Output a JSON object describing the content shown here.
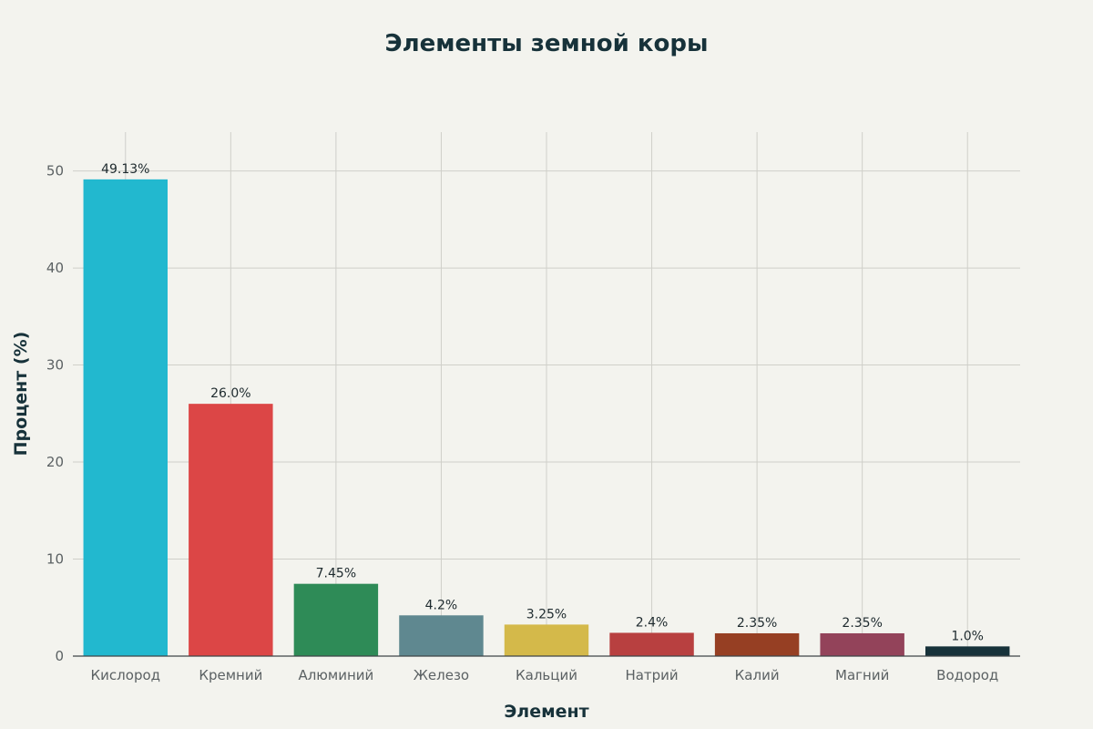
{
  "chart_data": {
    "type": "bar",
    "title": "Элементы земной коры",
    "xlabel": "Элемент",
    "ylabel": "Процент (%)",
    "ylim": [
      0,
      54
    ],
    "yticks": [
      0,
      10,
      20,
      30,
      40,
      50
    ],
    "grid": true,
    "categories": [
      "Кислород",
      "Кремний",
      "Алюминий",
      "Железо",
      "Кальций",
      "Натрий",
      "Калий",
      "Магний",
      "Водород"
    ],
    "values": [
      49.13,
      26.0,
      7.45,
      4.2,
      3.25,
      2.4,
      2.35,
      2.35,
      1.0
    ],
    "data_labels": [
      "49.13%",
      "26.0%",
      "7.45%",
      "4.2%",
      "3.25%",
      "2.4%",
      "2.35%",
      "2.35%",
      "1.0%"
    ],
    "colors": [
      "#22b8cf",
      "#dc4646",
      "#2e8b57",
      "#5f8890",
      "#d4b94a",
      "#b84040",
      "#963f23",
      "#93435a",
      "#17323a"
    ]
  }
}
